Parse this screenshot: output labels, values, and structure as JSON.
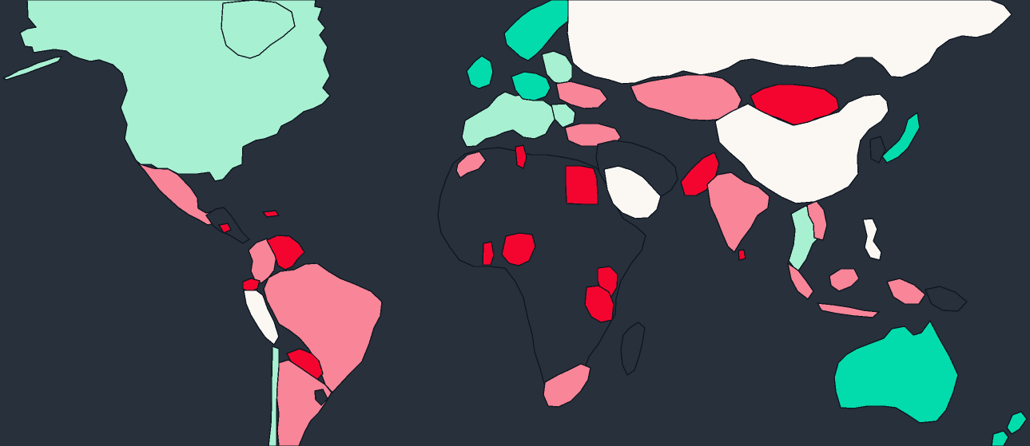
{
  "map": {
    "colors": {
      "ocean": "#27303b",
      "dark": "#27303b",
      "light_mint": "#a8f0d2",
      "mint": "#02dcad",
      "pink": "#f88598",
      "red": "#f4052f",
      "white": "#fbf8f4",
      "border": "#0f1720"
    },
    "regions": [
      {
        "name": "north-america",
        "fill": "#a8f0d2"
      },
      {
        "name": "greenland",
        "fill": "#a8f0d2"
      },
      {
        "name": "alaska-chain",
        "fill": "#a8f0d2"
      },
      {
        "name": "mexico",
        "fill": "#f88598"
      },
      {
        "name": "central-america",
        "fill": "#27303b"
      },
      {
        "name": "caribbean-red",
        "fill": "#f4052f"
      },
      {
        "name": "colombia",
        "fill": "#f88598"
      },
      {
        "name": "venezuela",
        "fill": "#f4052f"
      },
      {
        "name": "ecuador",
        "fill": "#f4052f"
      },
      {
        "name": "peru",
        "fill": "#fbf8f4"
      },
      {
        "name": "brazil",
        "fill": "#f88598"
      },
      {
        "name": "bolivia",
        "fill": "#f4052f"
      },
      {
        "name": "argentina",
        "fill": "#f88598"
      },
      {
        "name": "chile",
        "fill": "#a8f0d2"
      },
      {
        "name": "uruguay",
        "fill": "#27303b"
      },
      {
        "name": "europe-west",
        "fill": "#a8f0d2"
      },
      {
        "name": "uk-ireland",
        "fill": "#02dcad"
      },
      {
        "name": "scandinavia",
        "fill": "#02dcad"
      },
      {
        "name": "germany-poland",
        "fill": "#02dcad"
      },
      {
        "name": "eastern-europe",
        "fill": "#a8f0d2"
      },
      {
        "name": "ukraine",
        "fill": "#f88598"
      },
      {
        "name": "turkey",
        "fill": "#f88598"
      },
      {
        "name": "morocco",
        "fill": "#f88598"
      },
      {
        "name": "africa",
        "fill": "#27303b"
      },
      {
        "name": "egypt",
        "fill": "#f4052f"
      },
      {
        "name": "tunisia",
        "fill": "#f4052f"
      },
      {
        "name": "nigeria",
        "fill": "#f4052f"
      },
      {
        "name": "ghana",
        "fill": "#f4052f"
      },
      {
        "name": "kenya",
        "fill": "#f4052f"
      },
      {
        "name": "tanzania",
        "fill": "#f4052f"
      },
      {
        "name": "south-africa",
        "fill": "#f88598"
      },
      {
        "name": "madagascar",
        "fill": "#27303b"
      },
      {
        "name": "saudi-arabia",
        "fill": "#fbf8f4"
      },
      {
        "name": "middle-east",
        "fill": "#27303b"
      },
      {
        "name": "russia",
        "fill": "#fbf8f4"
      },
      {
        "name": "kazakhstan",
        "fill": "#f88598"
      },
      {
        "name": "mongolia",
        "fill": "#f4052f"
      },
      {
        "name": "china",
        "fill": "#fbf8f4"
      },
      {
        "name": "pakistan",
        "fill": "#f4052f"
      },
      {
        "name": "india",
        "fill": "#f88598"
      },
      {
        "name": "sri-lanka",
        "fill": "#f4052f"
      },
      {
        "name": "japan",
        "fill": "#02dcad"
      },
      {
        "name": "korea",
        "fill": "#27303b"
      },
      {
        "name": "southeast-asia",
        "fill": "#a8f0d2"
      },
      {
        "name": "vietnam",
        "fill": "#f88598"
      },
      {
        "name": "philippines",
        "fill": "#fbf8f4"
      },
      {
        "name": "indonesia",
        "fill": "#f88598"
      },
      {
        "name": "papua-new-guinea",
        "fill": "#27303b"
      },
      {
        "name": "australia",
        "fill": "#02dcad"
      },
      {
        "name": "new-zealand",
        "fill": "#02dcad"
      }
    ]
  }
}
